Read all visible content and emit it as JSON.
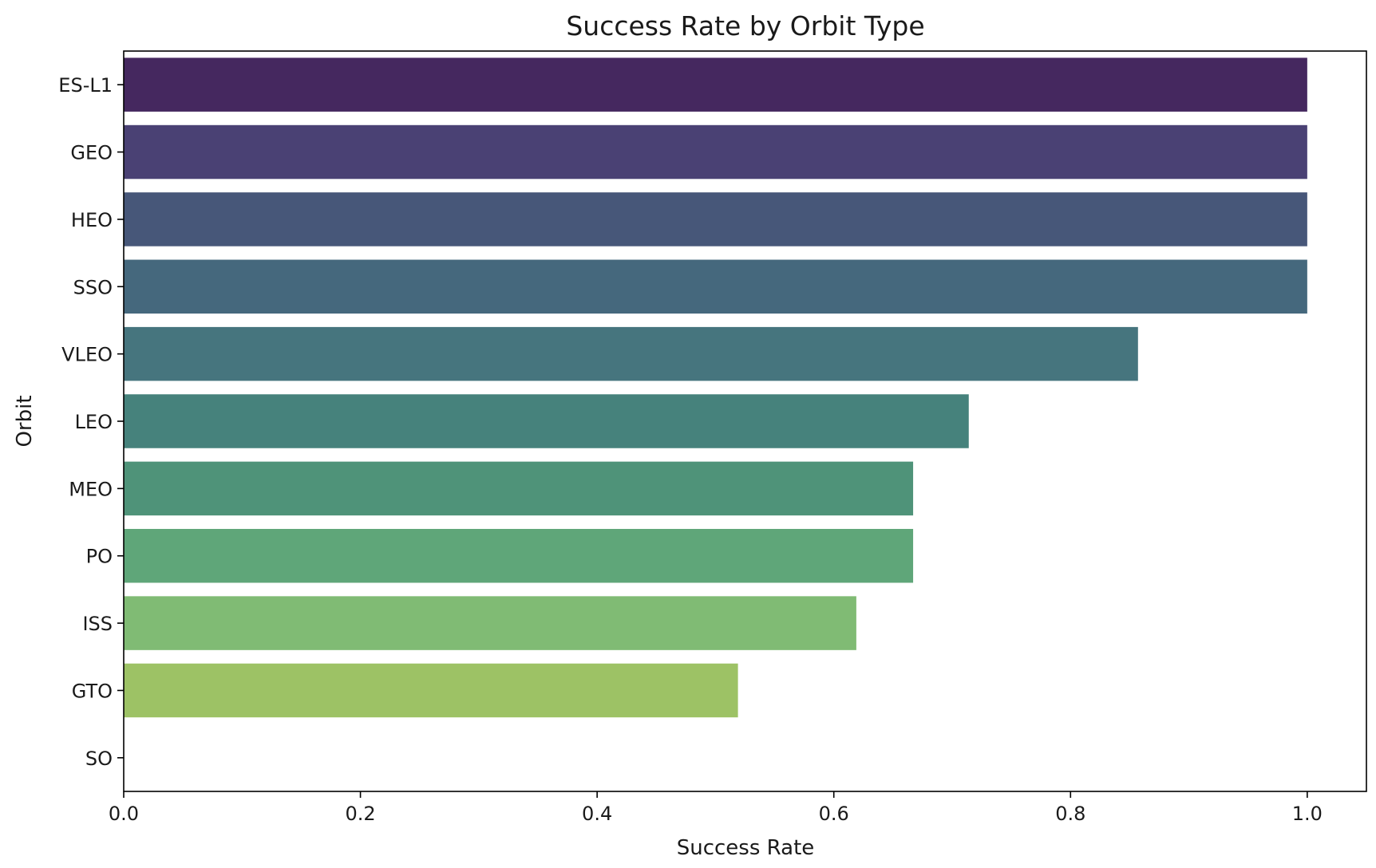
{
  "chart_data": {
    "type": "bar",
    "orientation": "horizontal",
    "title": "Success Rate by Orbit Type",
    "xlabel": "Success Rate",
    "ylabel": "Orbit",
    "categories": [
      "ES-L1",
      "GEO",
      "HEO",
      "SSO",
      "VLEO",
      "LEO",
      "MEO",
      "PO",
      "ISS",
      "GTO",
      "SO"
    ],
    "values": [
      1.0,
      1.0,
      1.0,
      1.0,
      0.857,
      0.714,
      0.667,
      0.667,
      0.619,
      0.519,
      0.0
    ],
    "colors": [
      "#45285f",
      "#4a4174",
      "#475779",
      "#45687d",
      "#46757e",
      "#46827c",
      "#4f9379",
      "#5fa679",
      "#80bb74",
      "#9dc265",
      "#b6cc55"
    ],
    "xlim": [
      0,
      1.05
    ],
    "xticks": [
      0.0,
      0.2,
      0.4,
      0.6,
      0.8,
      1.0
    ],
    "xtick_labels": [
      "0.0",
      "0.2",
      "0.4",
      "0.6",
      "0.8",
      "1.0"
    ],
    "grid": false,
    "legend": "none"
  }
}
